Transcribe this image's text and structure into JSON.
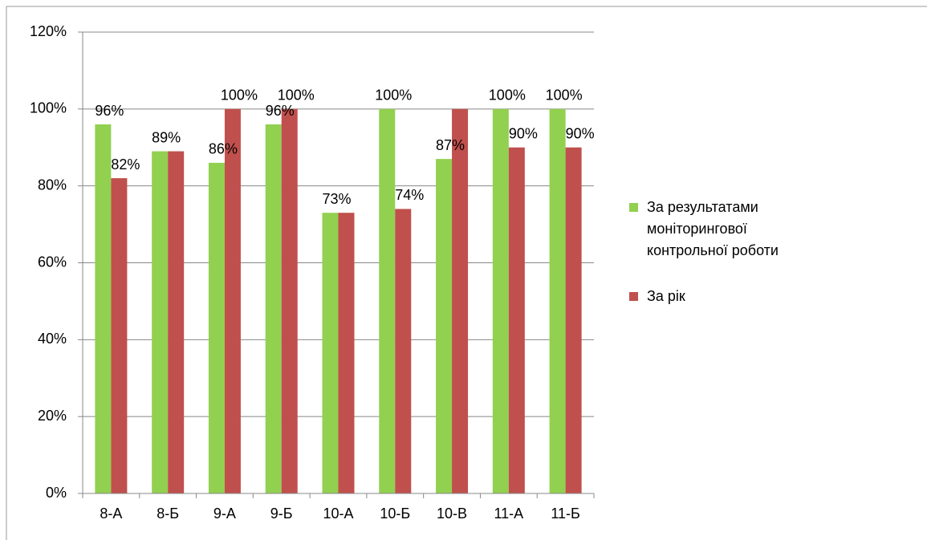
{
  "chart_data": {
    "type": "bar",
    "categories": [
      "8-А",
      "8-Б",
      "9-А",
      "9-Б",
      "10-А",
      "10-Б",
      "10-В",
      "11-А",
      "11-Б"
    ],
    "series": [
      {
        "name": "За результатами моніторингової контрольної роботи",
        "color": "#92d050",
        "values": [
          96,
          89,
          86,
          96,
          73,
          100,
          87,
          100,
          100
        ],
        "value_labels": [
          "96%",
          "89%",
          "86%",
          "96%",
          "73%",
          "100%",
          "87%",
          "100%",
          "100%"
        ]
      },
      {
        "name": "За рік",
        "color": "#c0504d",
        "values": [
          82,
          89,
          100,
          100,
          73,
          74,
          100,
          90,
          90
        ],
        "value_labels": [
          "82%",
          "",
          "100%",
          "100%",
          "",
          "74%",
          "",
          "90%",
          "90%"
        ]
      }
    ],
    "ylim": [
      0,
      120
    ],
    "yticks": [
      {
        "value": 0,
        "label": "0%"
      },
      {
        "value": 20,
        "label": "20%"
      },
      {
        "value": 40,
        "label": "40%"
      },
      {
        "value": 60,
        "label": "60%"
      },
      {
        "value": 80,
        "label": "80%"
      },
      {
        "value": 100,
        "label": "100%"
      },
      {
        "value": 120,
        "label": "120%"
      }
    ],
    "grid": true,
    "legend": "right"
  }
}
